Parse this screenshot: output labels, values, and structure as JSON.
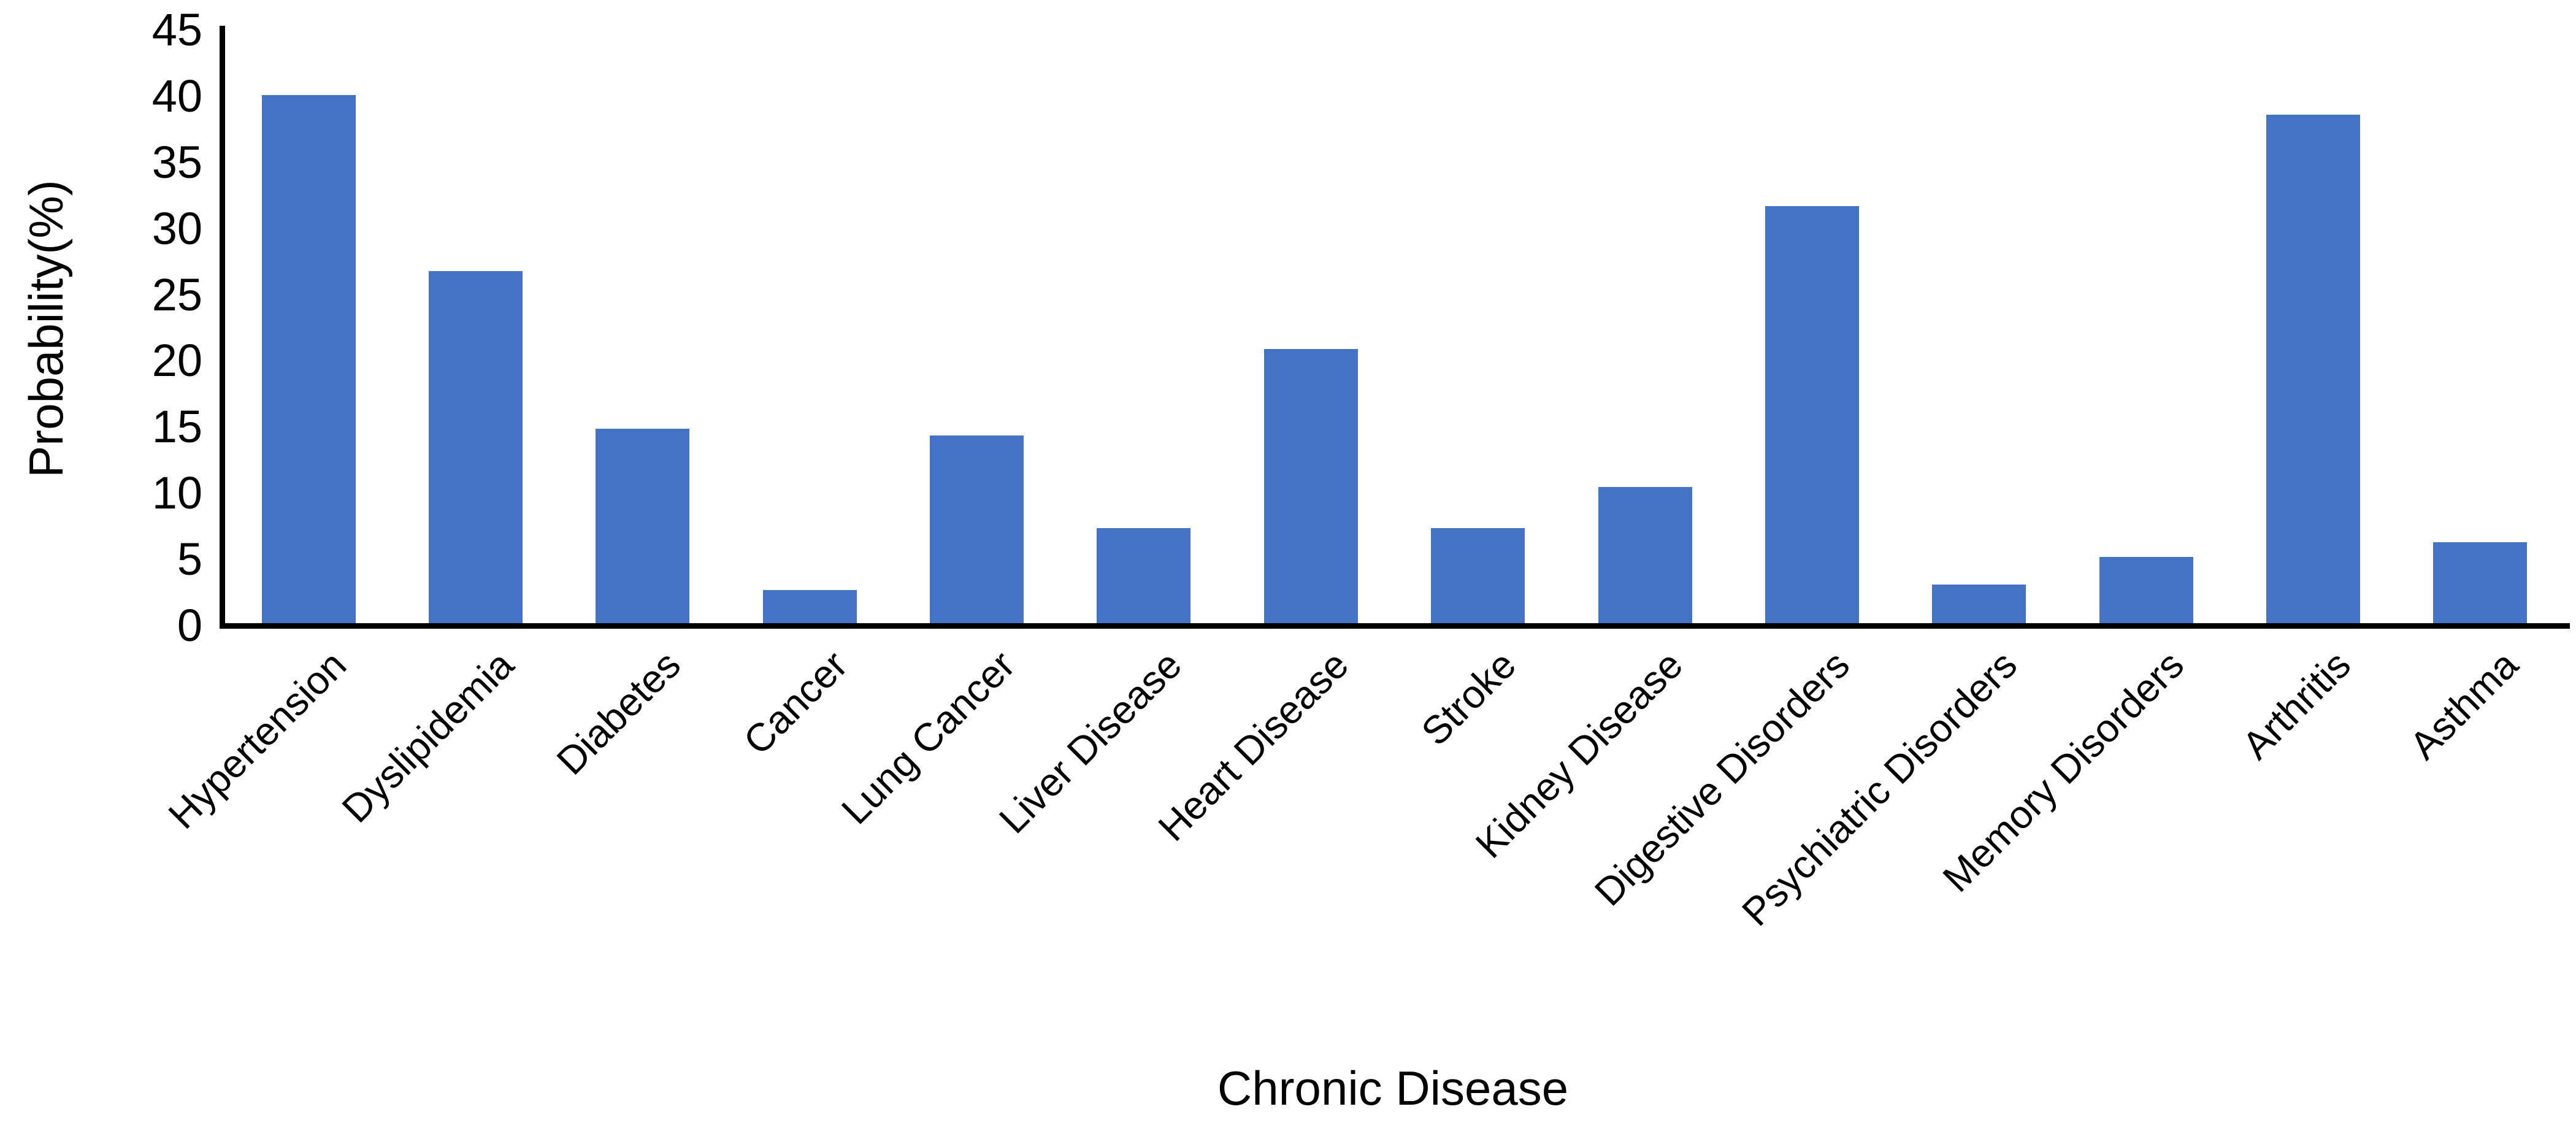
{
  "chart_data": {
    "type": "bar",
    "title": "",
    "xlabel": "Chronic Disease",
    "ylabel": "Probability(%)",
    "categories": [
      "Hypertension",
      "Dyslipidemia",
      "Diabetes",
      "Cancer",
      "Lung Cancer",
      "Liver Disease",
      "Heart Disease",
      "Stroke",
      "Kidney Disease",
      "Digestive Disorders",
      "Psychiatric Disorders",
      "Memory Disorders",
      "Arthritis",
      "Asthma"
    ],
    "values": [
      39.9,
      26.6,
      14.7,
      2.5,
      14.2,
      7.2,
      20.7,
      7.2,
      10.3,
      31.5,
      2.9,
      5.0,
      38.4,
      6.1
    ],
    "ylim": [
      0,
      45
    ],
    "yticks": [
      0,
      5,
      10,
      15,
      20,
      25,
      30,
      35,
      40,
      45
    ],
    "grid": false,
    "legend_position": "none",
    "bar_color": "#4472C4",
    "axis_color": "#000000",
    "label_rotation_deg": -45
  }
}
